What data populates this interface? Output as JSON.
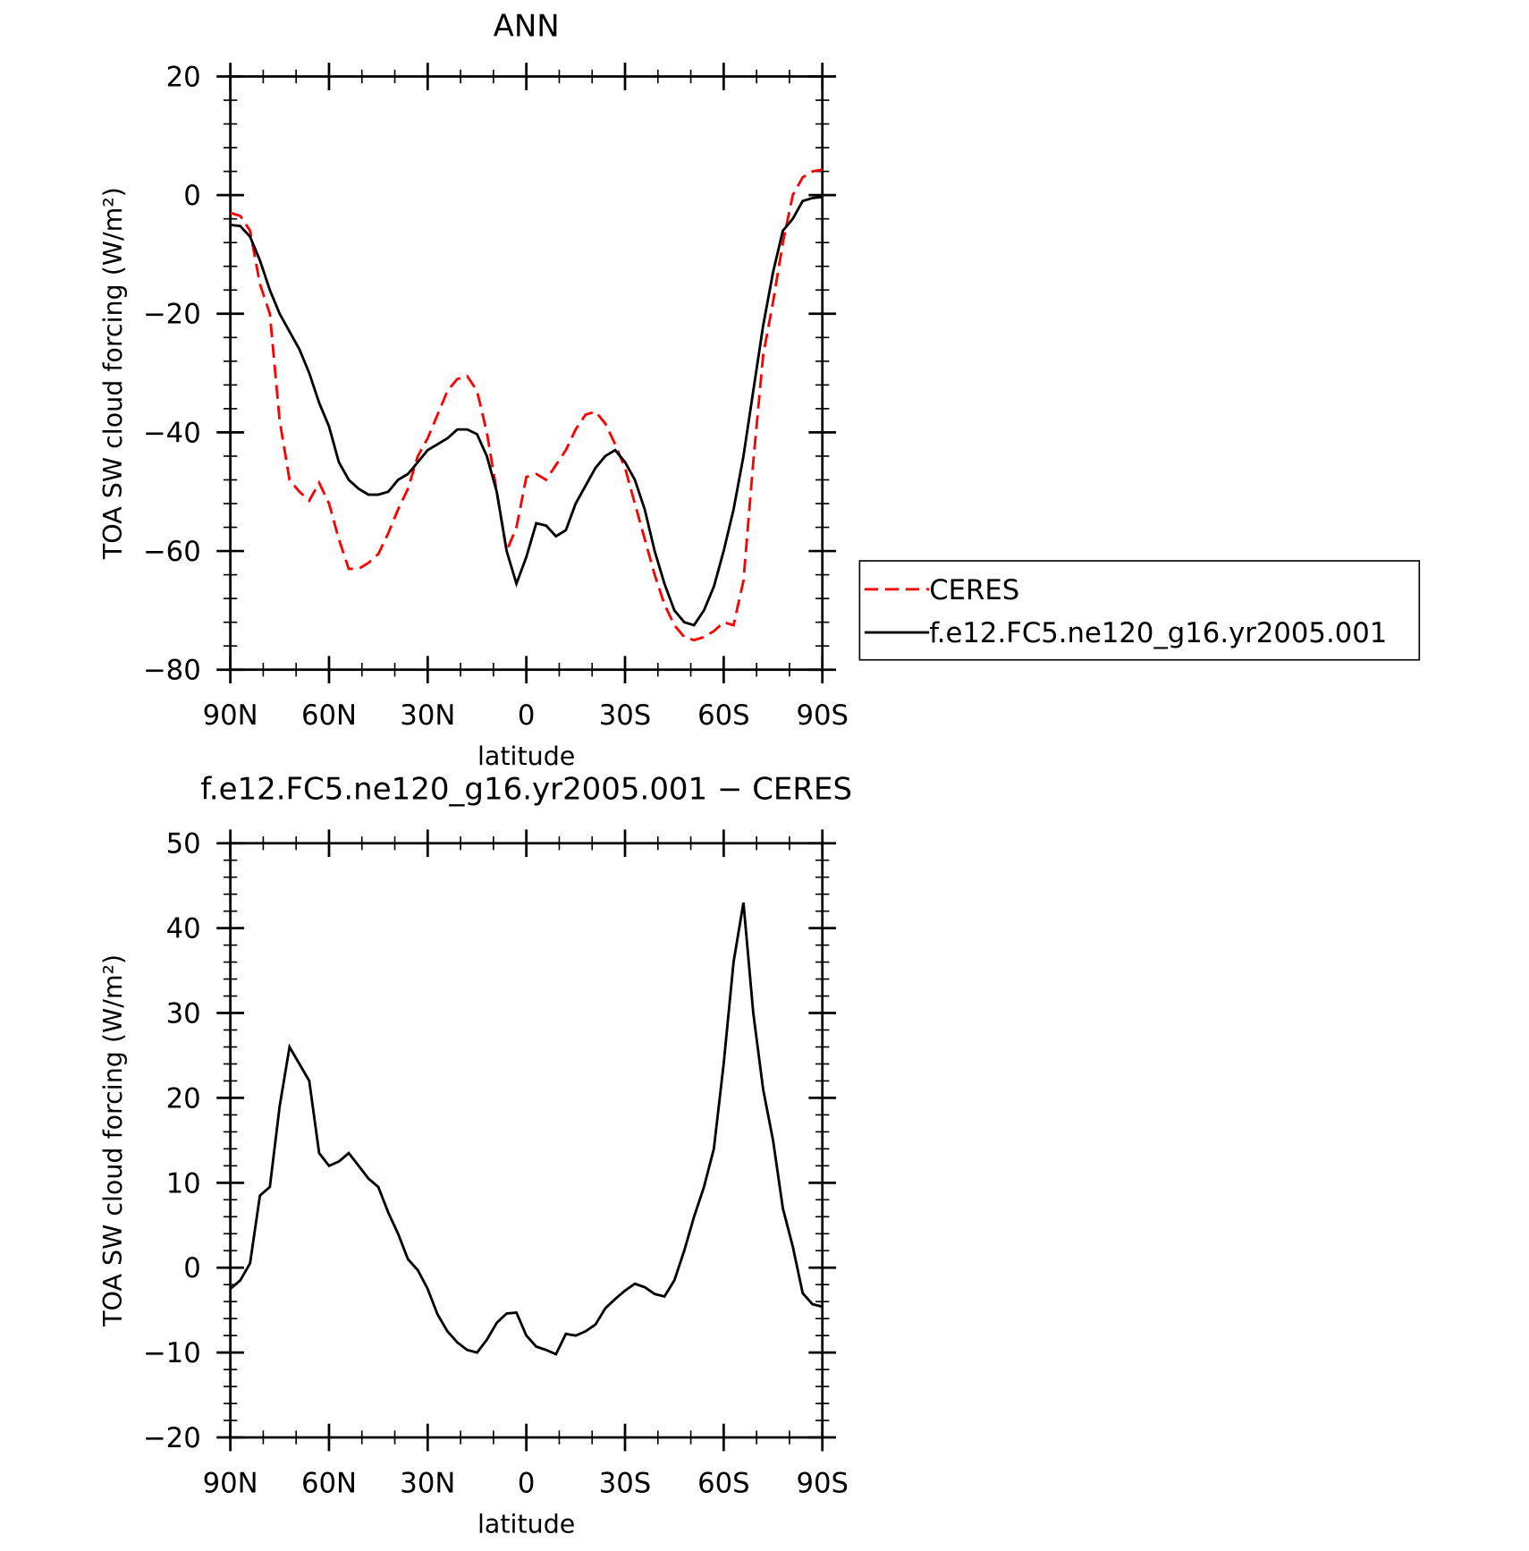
{
  "chart_data": [
    {
      "type": "line",
      "title": "ANN",
      "xlabel": "latitude",
      "ylabel": "TOA SW cloud forcing (W/m²)",
      "x": [
        90,
        87,
        84,
        81,
        78,
        75,
        72,
        69,
        66,
        63,
        60,
        57,
        54,
        51,
        48,
        45,
        42,
        39,
        36,
        33,
        30,
        27,
        24,
        21,
        18,
        15,
        12,
        9,
        6,
        3,
        0,
        -3,
        -6,
        -9,
        -12,
        -15,
        -18,
        -21,
        -24,
        -27,
        -30,
        -33,
        -36,
        -39,
        -42,
        -45,
        -48,
        -51,
        -54,
        -57,
        -60,
        -63,
        -66,
        -69,
        -72,
        -75,
        -78,
        -81,
        -84,
        -87,
        -90
      ],
      "series": [
        {
          "name": "CERES",
          "color": "#ff0000",
          "dash": true,
          "values": [
            -3,
            -3.5,
            -6,
            -15,
            -20,
            -38,
            -48,
            -50,
            -51.5,
            -48.5,
            -52,
            -58,
            -63,
            -63,
            -62,
            -60.5,
            -57,
            -53,
            -49.5,
            -44,
            -41,
            -37,
            -33,
            -31,
            -30.5,
            -33,
            -40,
            -50,
            -60,
            -56,
            -47.5,
            -47,
            -48,
            -45.5,
            -43,
            -39.5,
            -37,
            -36.5,
            -38.5,
            -42,
            -46,
            -52,
            -58,
            -64,
            -69,
            -72.5,
            -74.5,
            -75,
            -74.5,
            -73.5,
            -72,
            -72.5,
            -65,
            -45,
            -27,
            -18,
            -8,
            0,
            3,
            4,
            4.3
          ]
        },
        {
          "name": "f.e12.FC5.ne120_g16.yr2005.001",
          "color": "#000000",
          "dash": false,
          "values": [
            -5,
            -5.2,
            -7,
            -11,
            -16,
            -20,
            -23,
            -26,
            -30,
            -35,
            -39,
            -45,
            -48,
            -49.5,
            -50.5,
            -50.5,
            -50,
            -48,
            -47,
            -45,
            -43,
            -42,
            -41,
            -39.5,
            -39.5,
            -40.3,
            -44,
            -50,
            -60,
            -65.5,
            -61,
            -55.3,
            -55.7,
            -57.5,
            -56.5,
            -52,
            -49,
            -46,
            -44,
            -43,
            -45,
            -48,
            -53,
            -60,
            -65.5,
            -70,
            -72,
            -72.5,
            -70,
            -66,
            -60,
            -53,
            -44,
            -33,
            -22,
            -13,
            -6,
            -4,
            -1,
            -0.5,
            -0.3
          ]
        }
      ],
      "xlim": [
        90,
        -90
      ],
      "xticks": [
        {
          "value": 90,
          "label": "90N"
        },
        {
          "value": 60,
          "label": "60N"
        },
        {
          "value": 30,
          "label": "30N"
        },
        0,
        {
          "value": -30,
          "label": "30S"
        },
        {
          "value": -60,
          "label": "60S"
        },
        {
          "value": -90,
          "label": "90S"
        }
      ],
      "ylim": [
        -80,
        20
      ],
      "yticks": [
        {
          "value": -80,
          "label": "−80"
        },
        {
          "value": -60,
          "label": "−60"
        },
        {
          "value": -40,
          "label": "−40"
        },
        {
          "value": -20,
          "label": "−20"
        },
        0,
        20
      ],
      "legend": "right"
    },
    {
      "type": "line",
      "title": "f.e12.FC5.ne120_g16.yr2005.001 − CERES",
      "xlabel": "latitude",
      "ylabel": "TOA SW cloud forcing (W/m²)",
      "x": [
        90,
        87,
        84,
        81,
        78,
        75,
        72,
        69,
        66,
        63,
        60,
        57,
        54,
        51,
        48,
        45,
        42,
        39,
        36,
        33,
        30,
        27,
        24,
        21,
        18,
        15,
        12,
        9,
        6,
        3,
        0,
        -3,
        -6,
        -9,
        -12,
        -15,
        -18,
        -21,
        -24,
        -27,
        -30,
        -33,
        -36,
        -39,
        -42,
        -45,
        -48,
        -51,
        -54,
        -57,
        -60,
        -63,
        -66,
        -69,
        -72,
        -75,
        -78,
        -81,
        -84,
        -87,
        -90
      ],
      "color": "#000000",
      "values": [
        -2.5,
        -1.5,
        0.5,
        8.5,
        9.5,
        19,
        26,
        24,
        22,
        13.5,
        12,
        12.5,
        13.5,
        12,
        10.5,
        9.5,
        6.5,
        4,
        1,
        -0.3,
        -2.5,
        -5.5,
        -7.5,
        -8.8,
        -9.7,
        -10,
        -8.5,
        -6.5,
        -5.4,
        -5.3,
        -8,
        -9.3,
        -9.7,
        -10.2,
        -7.8,
        -8,
        -7.5,
        -6.7,
        -4.8,
        -3.7,
        -2.7,
        -1.9,
        -2.3,
        -3.1,
        -3.4,
        -1.5,
        2,
        6,
        9.5,
        14,
        24,
        36,
        43,
        30,
        21,
        15,
        7,
        2.5,
        -3,
        -4.3,
        -4.6
      ],
      "xlim": [
        90,
        -90
      ],
      "xticks": [
        {
          "value": 90,
          "label": "90N"
        },
        {
          "value": 60,
          "label": "60N"
        },
        {
          "value": 30,
          "label": "30N"
        },
        0,
        {
          "value": -30,
          "label": "30S"
        },
        {
          "value": -60,
          "label": "60S"
        },
        {
          "value": -90,
          "label": "90S"
        }
      ],
      "ylim": [
        -20,
        50
      ],
      "yticks": [
        {
          "value": -20,
          "label": "−20"
        },
        {
          "value": -10,
          "label": "−10"
        },
        0,
        10,
        20,
        30,
        40,
        50
      ]
    }
  ]
}
